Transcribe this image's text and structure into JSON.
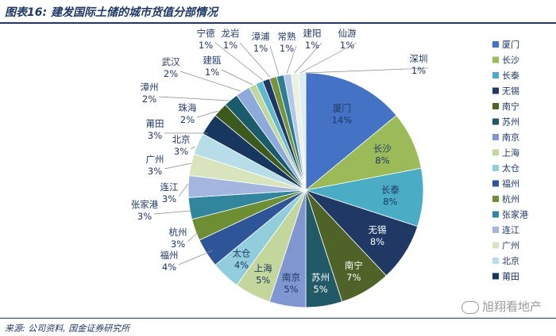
{
  "header": {
    "title": "图表16: 建发国际土储的城市货值分部情况"
  },
  "footer": {
    "source": "来源: 公司资料, 国金证券研究所"
  },
  "watermark": {
    "text": "旭翔看地产"
  },
  "chart_data": {
    "type": "pie",
    "title": "",
    "legend_position": "right",
    "slices": [
      {
        "name": "厦门",
        "value": 14,
        "label": "14%",
        "color": "#4472c4"
      },
      {
        "name": "长沙",
        "value": 8,
        "label": "8%",
        "color": "#9bbb59"
      },
      {
        "name": "长泰",
        "value": 8,
        "label": "8%",
        "color": "#4bacc6"
      },
      {
        "name": "无锡",
        "value": 8,
        "label": "8%",
        "color": "#1f3864"
      },
      {
        "name": "南宁",
        "value": 7,
        "label": "7%",
        "color": "#4f6228"
      },
      {
        "name": "苏州",
        "value": 5,
        "label": "5%",
        "color": "#215967"
      },
      {
        "name": "南京",
        "value": 5,
        "label": "5%",
        "color": "#7f96d1"
      },
      {
        "name": "上海",
        "value": 5,
        "label": "5%",
        "color": "#c3d69b"
      },
      {
        "name": "太仓",
        "value": 4,
        "label": "4%",
        "color": "#92cddc"
      },
      {
        "name": "福州",
        "value": 4,
        "label": "4%",
        "color": "#2e5597"
      },
      {
        "name": "杭州",
        "value": 3,
        "label": "3%",
        "color": "#6e8e34"
      },
      {
        "name": "张家港",
        "value": 3,
        "label": "3%",
        "color": "#31859c"
      },
      {
        "name": "连江",
        "value": 3,
        "label": "3%",
        "color": "#a4b6e0"
      },
      {
        "name": "广州",
        "value": 3,
        "label": "3%",
        "color": "#d7e4bc"
      },
      {
        "name": "北京",
        "value": 3,
        "label": "3%",
        "color": "#b7dee8"
      },
      {
        "name": "莆田",
        "value": 3,
        "label": "3%",
        "color": "#17375e"
      },
      {
        "name": "珠海",
        "value": 2,
        "label": "2%",
        "color": "#3d5a1e"
      },
      {
        "name": "漳州",
        "value": 2,
        "label": "2%",
        "color": "#1b5c6c"
      },
      {
        "name": "武汉",
        "value": 2,
        "label": "2%",
        "color": "#8eaadb"
      },
      {
        "name": "建瓯",
        "value": 1,
        "label": "1%",
        "color": "#c4d79b"
      },
      {
        "name": "宁德",
        "value": 1,
        "label": "1%",
        "color": "#5fb8cf"
      },
      {
        "name": "龙岩",
        "value": 1,
        "label": "1%",
        "color": "#203864"
      },
      {
        "name": "漳浦",
        "value": 1,
        "label": "1%",
        "color": "#76933c"
      },
      {
        "name": "常熟",
        "value": 1,
        "label": "1%",
        "color": "#2f7d94"
      },
      {
        "name": "建阳",
        "value": 1,
        "label": "1%",
        "color": "#b4c7e7"
      },
      {
        "name": "仙游",
        "value": 1,
        "label": "1%",
        "color": "#ebf1de"
      },
      {
        "name": "深圳",
        "value": 1,
        "label": "1%",
        "color": "#daeef3"
      }
    ],
    "legend_items": [
      "厦门",
      "长沙",
      "长泰",
      "无锡",
      "南宁",
      "苏州",
      "南京",
      "上海",
      "太仓",
      "福州",
      "杭州",
      "张家港",
      "连江",
      "广州",
      "北京",
      "莆田"
    ]
  }
}
